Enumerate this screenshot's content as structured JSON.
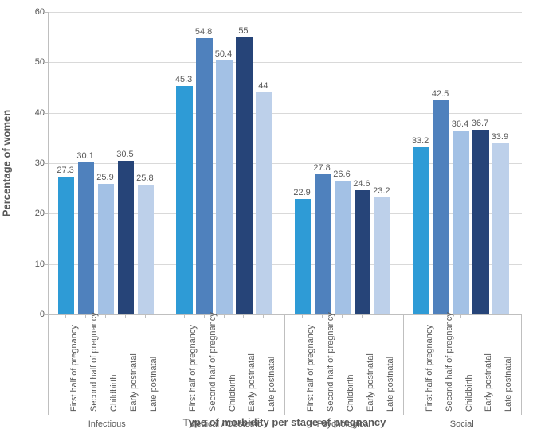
{
  "chart": {
    "type": "bar",
    "y_label": "Percentage of women",
    "x_label": "Type of morbidity per stage of pregnancy",
    "ylim": [
      0,
      60
    ],
    "ytick_step": 10,
    "grid_color": "#d9d9d9",
    "axis_color": "#bfbfbf",
    "background_color": "#ffffff",
    "label_fontsize": 13,
    "tick_fontsize": 11,
    "value_fontsize": 11,
    "stages": [
      "First half of pregnancy",
      "Second half of pregnancy",
      "Childbirth",
      "Early postnatal",
      "Late postnatal"
    ],
    "stage_colors": [
      "#2e9bd6",
      "#4f81bd",
      "#a3c1e5",
      "#264478",
      "#bdd0ea"
    ],
    "groups": [
      {
        "name": "Infectious",
        "values": [
          27.3,
          30.1,
          25.9,
          30.5,
          25.8
        ]
      },
      {
        "name": "Medical / Obstetric",
        "values": [
          45.3,
          54.8,
          50.4,
          55,
          44
        ]
      },
      {
        "name": "Psychological",
        "values": [
          22.9,
          27.8,
          26.6,
          24.6,
          23.2
        ]
      },
      {
        "name": "Social",
        "values": [
          33.2,
          42.5,
          36.4,
          36.7,
          33.9
        ]
      }
    ]
  }
}
